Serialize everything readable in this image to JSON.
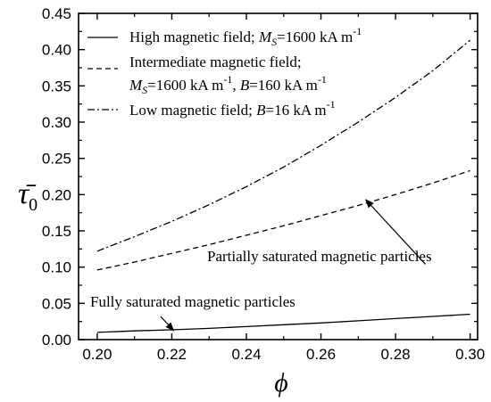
{
  "chart_data": {
    "type": "line",
    "x_tick_labels": [
      "0.20",
      "0.22",
      "0.24",
      "0.26",
      "0.28",
      "0.30"
    ],
    "y_tick_labels": [
      "0.00",
      "0.05",
      "0.10",
      "0.15",
      "0.20",
      "0.25",
      "0.30",
      "0.35",
      "0.40",
      "0.45"
    ],
    "x_ticks": [
      0.2,
      0.22,
      0.24,
      0.26,
      0.28,
      0.3
    ],
    "y_ticks": [
      0.0,
      0.05,
      0.1,
      0.15,
      0.2,
      0.25,
      0.3,
      0.35,
      0.4,
      0.45
    ],
    "xlim": [
      0.195,
      0.302
    ],
    "ylim": [
      0.0,
      0.45
    ],
    "xlabel": "ϕ",
    "ylabel": "τ̄",
    "ylabel_subscript": "0",
    "grid": false,
    "legend_position": "top-left",
    "x": [
      0.2,
      0.21,
      0.22,
      0.23,
      0.24,
      0.25,
      0.26,
      0.27,
      0.28,
      0.29,
      0.3
    ],
    "series": [
      {
        "legend_lines": [
          {
            "pre": "High magnetic field; ",
            "sym": "M",
            "sub": "S",
            "post": "=1600 kA m",
            "sup": "-1"
          }
        ],
        "dash": "solid",
        "values": [
          0.01,
          0.012,
          0.0135,
          0.0155,
          0.018,
          0.0205,
          0.023,
          0.026,
          0.029,
          0.032,
          0.035
        ]
      },
      {
        "legend_lines": [
          {
            "pre": "Intermediate magnetic field;"
          },
          {
            "sym": "M",
            "sub": "S",
            "post": "=1600 kA m",
            "sup": "-1",
            "post2": ", ",
            "sym2": "B",
            "post3": "=160 kA m",
            "sup2": "-1"
          }
        ],
        "dash": "dashed",
        "values": [
          0.096,
          0.107,
          0.119,
          0.131,
          0.144,
          0.157,
          0.171,
          0.185,
          0.2,
          0.216,
          0.233
        ]
      },
      {
        "legend_lines": [
          {
            "pre": "Low magnetic field; ",
            "sym": "B",
            "post": "=16 kA m",
            "sup": "-1"
          }
        ],
        "dash": "dash-dot",
        "values": [
          0.122,
          0.142,
          0.163,
          0.186,
          0.211,
          0.238,
          0.268,
          0.3,
          0.334,
          0.371,
          0.413
        ]
      }
    ],
    "annotations": [
      {
        "text": "Partially saturated magnetic particles",
        "arrow_tip": [
          0.272,
          0.193
        ],
        "arrow_tail": [
          0.288,
          0.104
        ]
      },
      {
        "text": "Fully saturated magnetic particles",
        "arrow_tip": [
          0.2205,
          0.0125
        ],
        "arrow_tail": [
          0.217,
          0.032
        ]
      }
    ]
  }
}
